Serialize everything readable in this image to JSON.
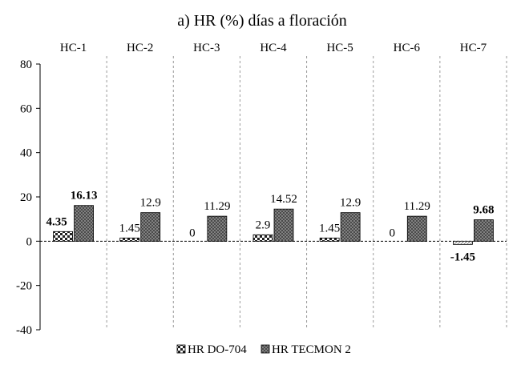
{
  "chart_data": {
    "type": "bar",
    "title": "a) HR (%) días a floración",
    "categories": [
      "HC-1",
      "HC-2",
      "HC-3",
      "HC-4",
      "HC-5",
      "HC-6",
      "HC-7"
    ],
    "series": [
      {
        "name": "HR DO-704",
        "values": [
          4.35,
          1.45,
          0,
          2.9,
          1.45,
          0,
          -1.45
        ],
        "labels": [
          "4.35",
          "1.45",
          "0",
          "2.9",
          "1.45",
          "0",
          "-1.45"
        ],
        "label_bold": [
          true,
          false,
          false,
          false,
          false,
          false,
          true
        ],
        "pattern": "checkered",
        "color": "#000000"
      },
      {
        "name": "HR TECMON 2",
        "values": [
          16.13,
          12.9,
          11.29,
          14.52,
          12.9,
          11.29,
          9.68
        ],
        "labels": [
          "16.13",
          "12.9",
          "11.29",
          "14.52",
          "12.9",
          "11.29",
          "9.68"
        ],
        "label_bold": [
          true,
          false,
          false,
          false,
          false,
          false,
          true
        ],
        "pattern": "crosshatch",
        "color": "#000000"
      }
    ],
    "ylim": [
      -40,
      80
    ],
    "yticks": [
      -40,
      -20,
      0,
      20,
      40,
      60,
      80
    ],
    "xlabel": "",
    "ylabel": "",
    "grid": "vertical dashed category separators",
    "legend_position": "bottom-center",
    "zero_line": "dashed"
  }
}
